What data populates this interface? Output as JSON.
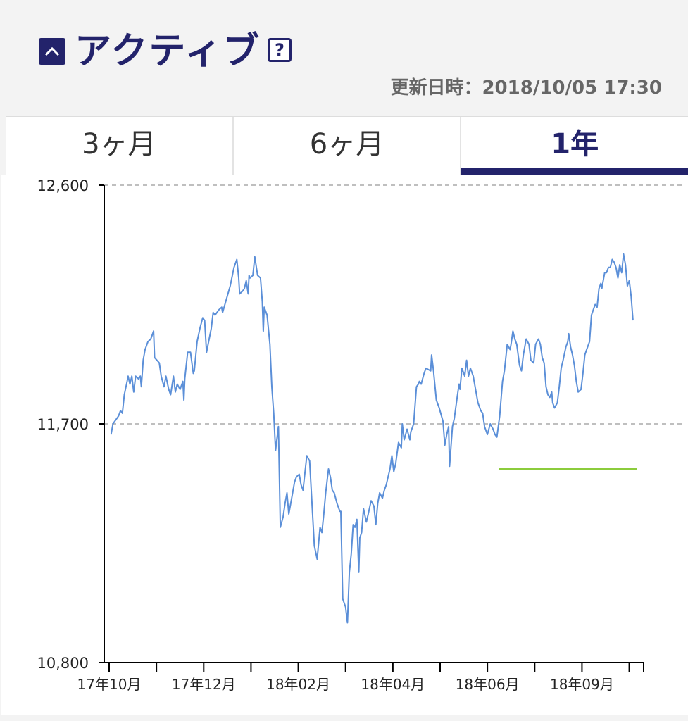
{
  "header": {
    "title": "アクティブ",
    "help_label": "?",
    "updated": "更新日時：2018/10/05 17:30"
  },
  "icons": {
    "collapse": "chevron-up-icon",
    "help": "question-icon"
  },
  "tabs": [
    {
      "label": "3ヶ月",
      "active": false
    },
    {
      "label": "6ヶ月",
      "active": false
    },
    {
      "label": "1年",
      "active": true
    }
  ],
  "colors": {
    "accent": "#23236b",
    "line": "#5b8fd8",
    "ref_line": "#8ccc3c",
    "grid": "#aaaaaa"
  },
  "chart_data": {
    "type": "line",
    "title": "",
    "xlabel": "",
    "ylabel": "",
    "ylim": [
      10800,
      12600
    ],
    "grid": true,
    "yticks": [
      {
        "value": 12600,
        "label": "12,600"
      },
      {
        "value": 11700,
        "label": "11,700"
      },
      {
        "value": 10800,
        "label": "10,800"
      }
    ],
    "xlim": [
      0,
      56
    ],
    "xticks": [
      {
        "pos": 0,
        "label": "17年10月"
      },
      {
        "pos": 5
      },
      {
        "pos": 10,
        "label": "17年12月"
      },
      {
        "pos": 15
      },
      {
        "pos": 20,
        "label": "18年02月"
      },
      {
        "pos": 25
      },
      {
        "pos": 30,
        "label": "18年04月"
      },
      {
        "pos": 35
      },
      {
        "pos": 40,
        "label": "18年06月"
      },
      {
        "pos": 45
      },
      {
        "pos": 50,
        "label": "18年09月"
      },
      {
        "pos": 55
      }
    ],
    "series": [
      {
        "values": [
          [
            0.2,
            11660
          ],
          [
            0.4,
            11700
          ],
          [
            1.0,
            11730
          ],
          [
            1.2,
            11750
          ],
          [
            1.4,
            11740
          ],
          [
            1.6,
            11810
          ],
          [
            1.9,
            11860
          ],
          [
            2.0,
            11880
          ],
          [
            2.2,
            11850
          ],
          [
            2.4,
            11880
          ],
          [
            2.6,
            11820
          ],
          [
            2.8,
            11880
          ],
          [
            3.1,
            11870
          ],
          [
            3.3,
            11880
          ],
          [
            3.4,
            11840
          ],
          [
            3.6,
            11940
          ],
          [
            3.8,
            11980
          ],
          [
            4.1,
            12010
          ],
          [
            4.4,
            12020
          ],
          [
            4.7,
            12050
          ],
          [
            4.8,
            11950
          ],
          [
            5.3,
            11930
          ],
          [
            5.5,
            11880
          ],
          [
            5.8,
            11840
          ],
          [
            6.0,
            11880
          ],
          [
            6.3,
            11830
          ],
          [
            6.5,
            11810
          ],
          [
            6.8,
            11880
          ],
          [
            7.0,
            11820
          ],
          [
            7.2,
            11850
          ],
          [
            7.5,
            11830
          ],
          [
            7.8,
            11860
          ],
          [
            7.9,
            11790
          ],
          [
            8.0,
            11870
          ],
          [
            8.3,
            11970
          ],
          [
            8.6,
            11970
          ],
          [
            8.9,
            11890
          ],
          [
            9.0,
            11900
          ],
          [
            9.3,
            12010
          ],
          [
            9.6,
            12060
          ],
          [
            9.9,
            12100
          ],
          [
            10.1,
            12090
          ],
          [
            10.3,
            11970
          ],
          [
            10.8,
            12060
          ],
          [
            11.0,
            12120
          ],
          [
            11.2,
            12110
          ],
          [
            11.6,
            12130
          ],
          [
            11.9,
            12140
          ],
          [
            12.0,
            12120
          ],
          [
            12.4,
            12170
          ],
          [
            12.8,
            12220
          ],
          [
            13.2,
            12290
          ],
          [
            13.5,
            12320
          ],
          [
            13.7,
            12250
          ],
          [
            13.8,
            12190
          ],
          [
            14.1,
            12200
          ],
          [
            14.3,
            12210
          ],
          [
            14.5,
            12240
          ],
          [
            14.7,
            12190
          ],
          [
            14.8,
            12260
          ],
          [
            14.9,
            12250
          ],
          [
            15.2,
            12260
          ],
          [
            15.4,
            12330
          ],
          [
            15.7,
            12260
          ],
          [
            16.0,
            12250
          ],
          [
            16.2,
            12160
          ],
          [
            16.3,
            12050
          ],
          [
            16.4,
            12140
          ],
          [
            16.7,
            12110
          ],
          [
            17.0,
            12000
          ],
          [
            17.2,
            11840
          ],
          [
            17.4,
            11740
          ],
          [
            17.6,
            11600
          ],
          [
            17.9,
            11690
          ],
          [
            18.1,
            11310
          ],
          [
            18.4,
            11350
          ],
          [
            18.6,
            11400
          ],
          [
            18.8,
            11440
          ],
          [
            19.0,
            11360
          ],
          [
            19.3,
            11420
          ],
          [
            19.6,
            11480
          ],
          [
            19.8,
            11500
          ],
          [
            20.1,
            11510
          ],
          [
            20.3,
            11470
          ],
          [
            20.5,
            11450
          ],
          [
            20.9,
            11580
          ],
          [
            21.2,
            11560
          ],
          [
            21.4,
            11430
          ],
          [
            21.7,
            11240
          ],
          [
            22.0,
            11190
          ],
          [
            22.3,
            11310
          ],
          [
            22.5,
            11290
          ],
          [
            22.7,
            11360
          ],
          [
            22.9,
            11440
          ],
          [
            23.2,
            11530
          ],
          [
            23.4,
            11500
          ],
          [
            23.6,
            11450
          ],
          [
            23.8,
            11440
          ],
          [
            24.1,
            11400
          ],
          [
            24.4,
            11370
          ],
          [
            24.5,
            11370
          ],
          [
            24.7,
            11040
          ],
          [
            25.0,
            11010
          ],
          [
            25.2,
            10950
          ],
          [
            25.4,
            11140
          ],
          [
            25.6,
            11210
          ],
          [
            25.8,
            11320
          ],
          [
            26.0,
            11310
          ],
          [
            26.2,
            11340
          ],
          [
            26.4,
            11140
          ],
          [
            26.5,
            11270
          ],
          [
            26.7,
            11290
          ],
          [
            26.9,
            11380
          ],
          [
            27.2,
            11330
          ],
          [
            27.4,
            11360
          ],
          [
            27.7,
            11410
          ],
          [
            28.0,
            11390
          ],
          [
            28.2,
            11320
          ],
          [
            28.4,
            11400
          ],
          [
            28.6,
            11440
          ],
          [
            28.9,
            11420
          ],
          [
            29.1,
            11450
          ],
          [
            29.3,
            11470
          ],
          [
            29.5,
            11500
          ],
          [
            29.7,
            11530
          ],
          [
            29.9,
            11580
          ],
          [
            30.1,
            11520
          ],
          [
            30.3,
            11550
          ],
          [
            30.6,
            11630
          ],
          [
            30.9,
            11610
          ],
          [
            31.0,
            11700
          ],
          [
            31.2,
            11640
          ],
          [
            31.5,
            11680
          ],
          [
            31.8,
            11640
          ],
          [
            31.9,
            11670
          ],
          [
            32.2,
            11700
          ],
          [
            32.5,
            11840
          ],
          [
            32.7,
            11850
          ],
          [
            32.8,
            11860
          ],
          [
            33.0,
            11850
          ],
          [
            33.3,
            11890
          ],
          [
            33.5,
            11910
          ],
          [
            34.0,
            11900
          ],
          [
            34.1,
            11960
          ],
          [
            34.3,
            11900
          ],
          [
            34.6,
            11790
          ],
          [
            34.9,
            11760
          ],
          [
            35.3,
            11710
          ],
          [
            35.5,
            11620
          ],
          [
            35.7,
            11660
          ],
          [
            35.9,
            11690
          ],
          [
            36.0,
            11540
          ],
          [
            36.3,
            11690
          ],
          [
            36.5,
            11720
          ],
          [
            36.8,
            11800
          ],
          [
            37.0,
            11850
          ],
          [
            37.1,
            11830
          ],
          [
            37.3,
            11910
          ],
          [
            37.5,
            11890
          ],
          [
            37.6,
            11880
          ],
          [
            37.8,
            11940
          ],
          [
            38.0,
            11880
          ],
          [
            38.2,
            11910
          ],
          [
            38.5,
            11880
          ],
          [
            38.8,
            11820
          ],
          [
            39.0,
            11780
          ],
          [
            39.3,
            11750
          ],
          [
            39.5,
            11740
          ],
          [
            39.7,
            11690
          ],
          [
            40.0,
            11660
          ],
          [
            40.3,
            11700
          ],
          [
            40.6,
            11680
          ],
          [
            40.8,
            11660
          ],
          [
            41.0,
            11650
          ],
          [
            41.3,
            11730
          ],
          [
            41.6,
            11860
          ],
          [
            41.8,
            11900
          ],
          [
            42.1,
            12000
          ],
          [
            42.4,
            11980
          ],
          [
            42.5,
            12000
          ],
          [
            42.7,
            12050
          ],
          [
            42.9,
            12020
          ],
          [
            43.1,
            12000
          ],
          [
            43.4,
            11920
          ],
          [
            43.6,
            11900
          ],
          [
            43.8,
            11960
          ],
          [
            44.1,
            12020
          ],
          [
            44.4,
            12000
          ],
          [
            44.6,
            11940
          ],
          [
            44.9,
            11930
          ],
          [
            45.1,
            12000
          ],
          [
            45.4,
            12020
          ],
          [
            45.6,
            12000
          ],
          [
            45.8,
            11950
          ],
          [
            46.0,
            11930
          ],
          [
            46.2,
            11840
          ],
          [
            46.4,
            11810
          ],
          [
            46.6,
            11800
          ],
          [
            46.8,
            11820
          ],
          [
            46.9,
            11780
          ],
          [
            47.1,
            11760
          ],
          [
            47.4,
            11780
          ],
          [
            47.6,
            11840
          ],
          [
            47.8,
            11910
          ],
          [
            48.0,
            11940
          ],
          [
            48.3,
            11990
          ],
          [
            48.5,
            12010
          ],
          [
            48.6,
            12040
          ],
          [
            48.8,
            11990
          ],
          [
            49.0,
            11960
          ],
          [
            49.2,
            11920
          ],
          [
            49.4,
            11860
          ],
          [
            49.6,
            11820
          ],
          [
            49.9,
            11830
          ],
          [
            50.1,
            11890
          ],
          [
            50.3,
            11960
          ],
          [
            50.5,
            11980
          ],
          [
            50.8,
            12010
          ],
          [
            51.0,
            12110
          ],
          [
            51.2,
            12130
          ],
          [
            51.4,
            12150
          ],
          [
            51.6,
            12140
          ],
          [
            51.8,
            12210
          ],
          [
            52.0,
            12230
          ],
          [
            52.1,
            12210
          ],
          [
            52.3,
            12250
          ],
          [
            52.4,
            12270
          ],
          [
            52.6,
            12270
          ],
          [
            52.8,
            12290
          ],
          [
            53.0,
            12290
          ],
          [
            53.2,
            12320
          ],
          [
            53.4,
            12310
          ],
          [
            53.6,
            12290
          ],
          [
            53.8,
            12250
          ],
          [
            54.0,
            12300
          ],
          [
            54.2,
            12270
          ],
          [
            54.4,
            12340
          ],
          [
            54.6,
            12300
          ],
          [
            54.8,
            12220
          ],
          [
            55.0,
            12240
          ],
          [
            55.2,
            12180
          ],
          [
            55.4,
            12090
          ]
        ]
      }
    ]
  }
}
